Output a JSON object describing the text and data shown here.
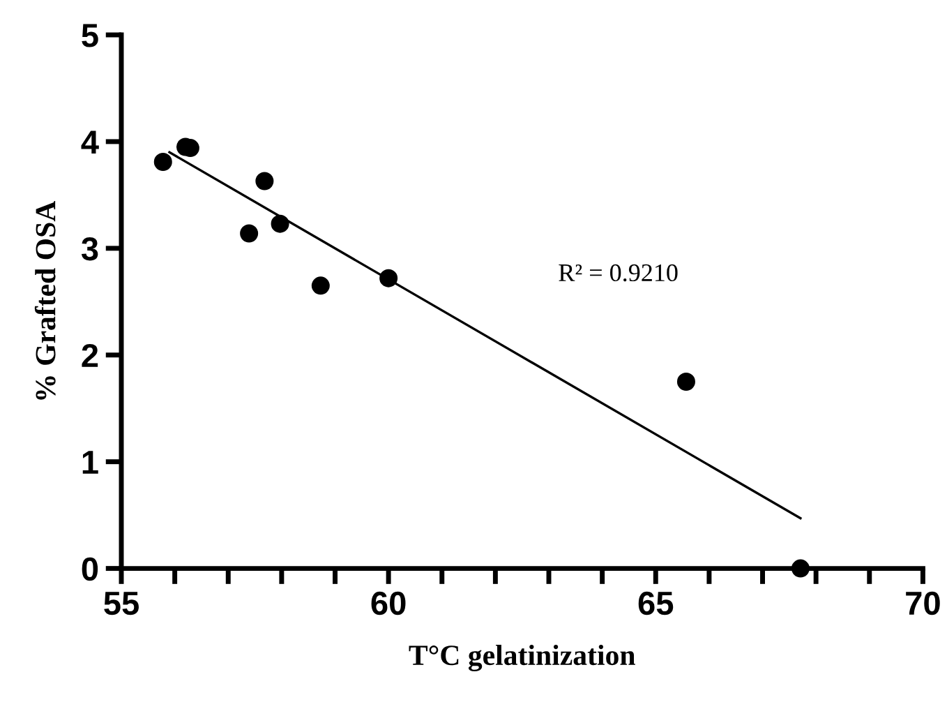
{
  "chart_data": {
    "type": "scatter",
    "xlabel": "T°C gelatinization",
    "ylabel": "% Grafted OSA",
    "xlim": [
      55,
      70
    ],
    "ylim": [
      0,
      5
    ],
    "xticks": [
      55,
      {
        "value": 56,
        "label": null
      },
      {
        "value": 57,
        "label": null
      },
      {
        "value": 58,
        "label": null
      },
      {
        "value": 59,
        "label": null
      },
      60,
      {
        "value": 61,
        "label": null
      },
      {
        "value": 62,
        "label": null
      },
      {
        "value": 63,
        "label": null
      },
      {
        "value": 64,
        "label": null
      },
      65,
      {
        "value": 66,
        "label": null
      },
      {
        "value": 67,
        "label": null
      },
      {
        "value": 68,
        "label": null
      },
      {
        "value": 69,
        "label": null
      },
      70
    ],
    "yticks": [
      0,
      1,
      2,
      3,
      4,
      5
    ],
    "grid": false,
    "legend": false,
    "series": [
      {
        "marker": "circle",
        "color": "#000000",
        "x": [
          55.78,
          56.2,
          56.29,
          57.68,
          57.39,
          57.97,
          58.73,
          60.0,
          65.57,
          67.71
        ],
        "values": [
          3.81,
          3.95,
          3.94,
          3.63,
          3.14,
          3.23,
          2.65,
          2.72,
          1.75,
          0
        ]
      },
      {
        "type": "line",
        "color": "#000000",
        "x": [
          55.9,
          67.71
        ],
        "values": [
          3.9,
          0.47
        ]
      }
    ],
    "annotations": [
      "R² = 0.9210"
    ]
  }
}
